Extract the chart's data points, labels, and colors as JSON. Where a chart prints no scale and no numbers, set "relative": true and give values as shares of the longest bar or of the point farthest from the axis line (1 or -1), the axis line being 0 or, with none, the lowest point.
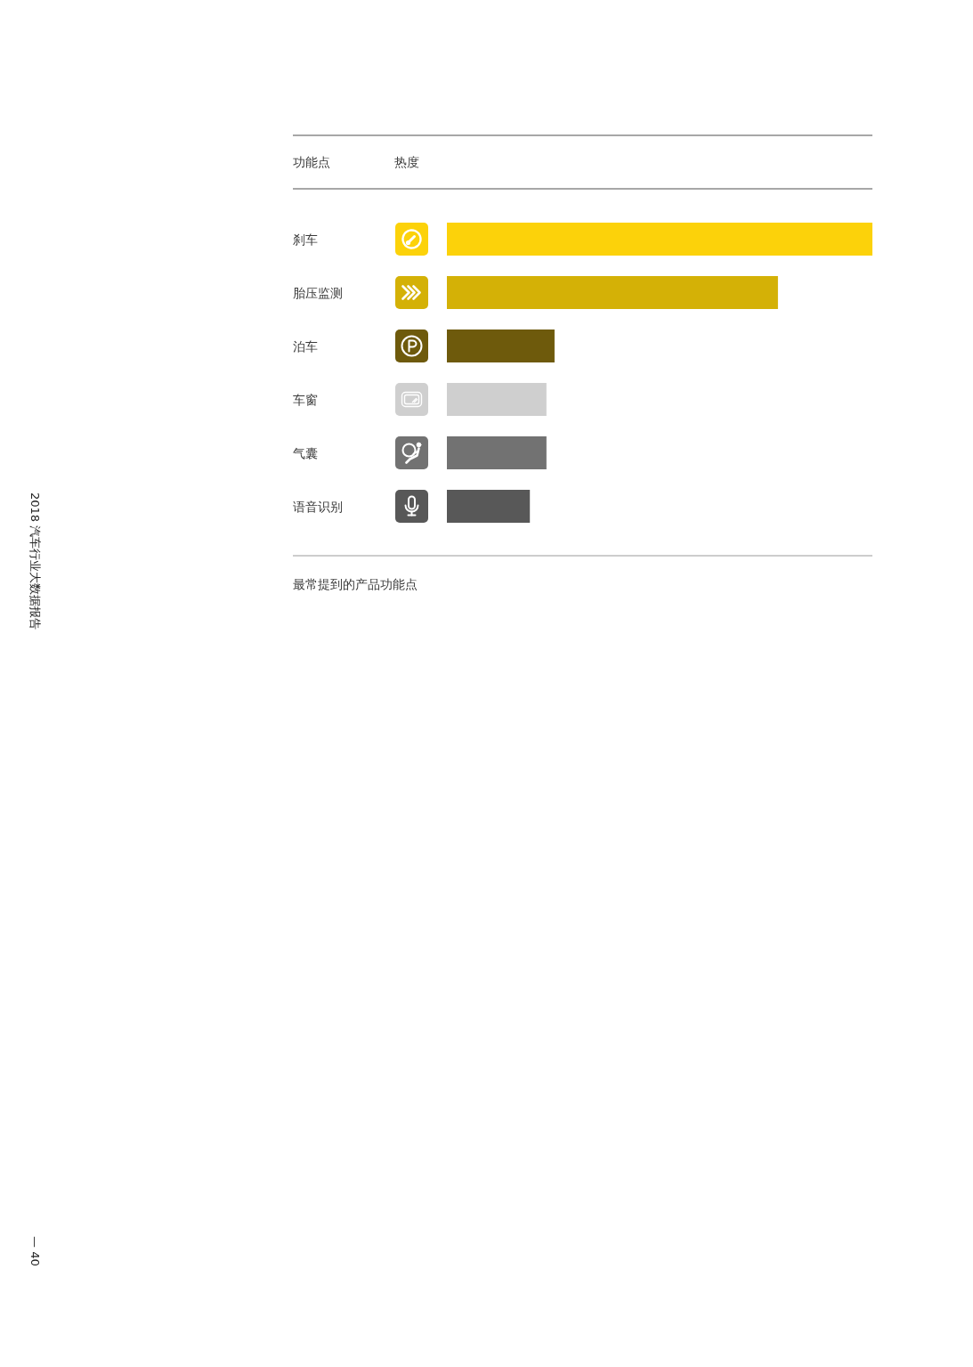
{
  "chart_data": {
    "type": "bar",
    "orientation": "horizontal",
    "relative": true,
    "title": "最常提到的产品功能点",
    "xlabel": "热度",
    "ylabel": "功能点",
    "categories": [
      "刹车",
      "胎压监测",
      "泊车",
      "车窗",
      "气囊",
      "语音识别"
    ],
    "values": [
      1,
      0.778,
      0.253,
      0.234,
      0.234,
      0.195
    ],
    "colors": [
      "#fcd20a",
      "#d4b106",
      "#6e5a0c",
      "#cfcfcf",
      "#727272",
      "#585858"
    ],
    "annotations": [
      "2018 汽车行业大数据报告",
      "— 40"
    ]
  }
}
